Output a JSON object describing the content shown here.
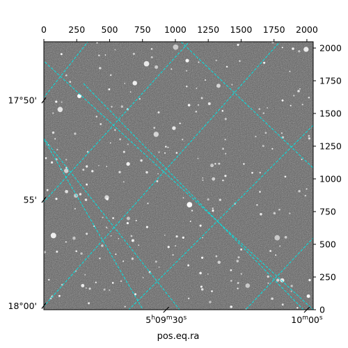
{
  "figure": {
    "xlabel": "pos.eq.ra",
    "pixel_axis": {
      "range": [
        0,
        2048
      ],
      "ticks": [
        "0",
        "250",
        "500",
        "750",
        "1000",
        "1250",
        "1500",
        "1750",
        "2000"
      ],
      "tick_values": [
        0,
        250,
        500,
        750,
        1000,
        1250,
        1500,
        1750,
        2000
      ]
    },
    "dec_ticks": [
      {
        "label": "17°50'",
        "value": 1600
      },
      {
        "label": "55'",
        "value": 840
      },
      {
        "label": "18°00'",
        "value": 30
      }
    ],
    "ra_ticks": [
      {
        "label_h": "5",
        "sup_h": "h",
        "label_m": "09",
        "sup_m": "m",
        "label_s": "30",
        "sup_s": "s",
        "value": 930
      },
      {
        "label_h": "",
        "sup_h": "",
        "label_m": "10",
        "sup_m": "m",
        "label_s": "00",
        "sup_s": "s",
        "value": 2000
      }
    ],
    "grid_color": "#00e5e5",
    "image_background": "#5a5a5a"
  }
}
